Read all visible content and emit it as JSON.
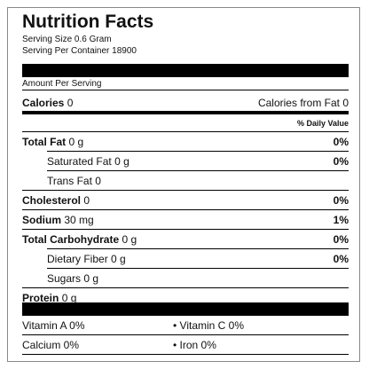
{
  "title": "Nutrition Facts",
  "serving_size": "Serving Size 0.6 Gram",
  "servings_per_container": "Serving Per Container 18900",
  "amount_per_serving": "Amount Per Serving",
  "calories": {
    "label": "Calories",
    "amount": "0",
    "from_fat": "Calories from Fat 0"
  },
  "daily_value_header": "% Daily Value",
  "rows": [
    {
      "label": "Total Fat",
      "amount": "0 g",
      "dv": "0%",
      "bold": true,
      "indent": false
    },
    {
      "label": "Saturated Fat",
      "amount": "0 g",
      "dv": "0%",
      "bold": false,
      "indent": true
    },
    {
      "label": "Trans Fat",
      "amount": "0",
      "bold": false,
      "indent": true
    },
    {
      "label": "Cholesterol",
      "amount": "0",
      "dv": "0%",
      "bold": true,
      "indent": false
    },
    {
      "label": "Sodium",
      "amount": "30 mg",
      "dv": "1%",
      "bold": true,
      "indent": false
    },
    {
      "label": "Total Carbohydrate",
      "amount": "0 g",
      "dv": "0%",
      "bold": true,
      "indent": false
    },
    {
      "label": "Dietary Fiber",
      "amount": "0 g",
      "dv": "0%",
      "bold": false,
      "indent": true
    },
    {
      "label": "Sugars",
      "amount": "0 g",
      "bold": false,
      "indent": true
    },
    {
      "label": "Protein",
      "amount": "0 g",
      "bold": true,
      "indent": false
    }
  ],
  "vitamins": [
    [
      "Vitamin A 0%",
      "Vitamin C 0%"
    ],
    [
      "Calcium 0%",
      "Iron 0%"
    ]
  ]
}
